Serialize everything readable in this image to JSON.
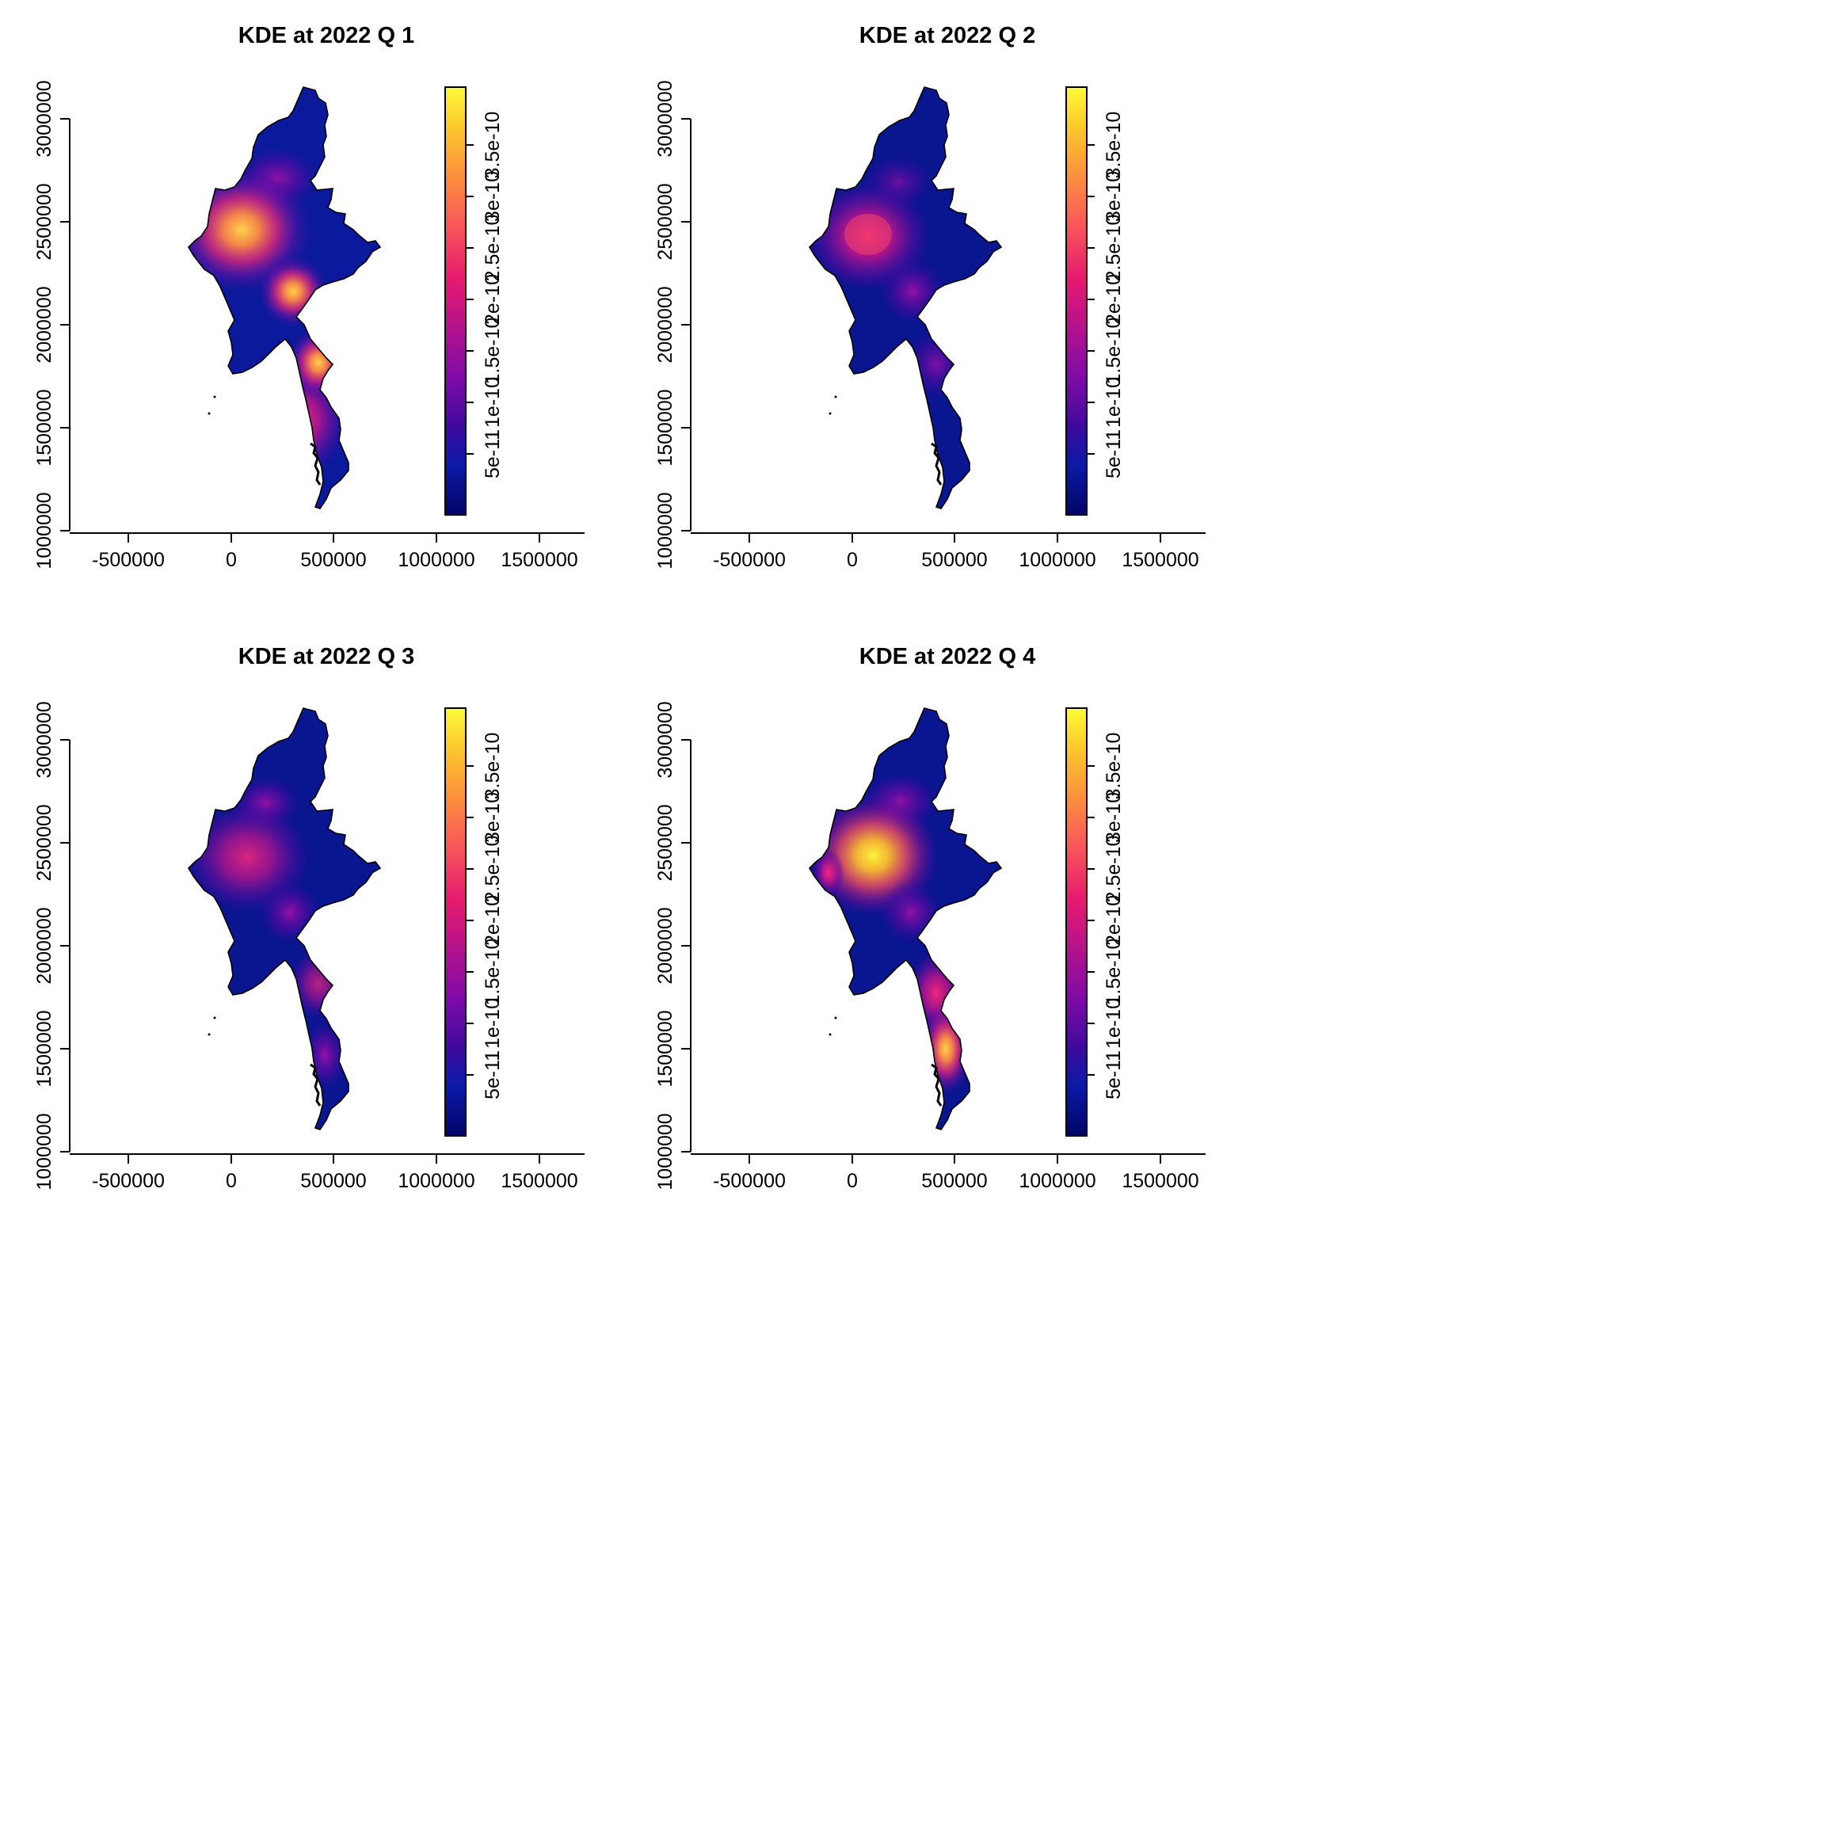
{
  "chart_data": [
    {
      "type": "heatmap",
      "title": "KDE at 2022 Q 1",
      "x_ticks": [
        "-500000",
        "0",
        "500000",
        "1000000",
        "1500000"
      ],
      "y_ticks": [
        "1000000",
        "1500000",
        "2000000",
        "2500000",
        "3000000"
      ],
      "colorbar_ticks": [
        "5e-11",
        "1e-10",
        "1.5e-10",
        "2e-10",
        "2.5e-10",
        "3e-10",
        "3.5e-10"
      ],
      "hotspots": [
        {
          "x": 60000,
          "y": 2450000,
          "value": 2.8e-10
        },
        {
          "x": 320000,
          "y": 2160000,
          "value": 2.3e-10
        },
        {
          "x": 420000,
          "y": 1800000,
          "value": 2.6e-10
        },
        {
          "x": 240000,
          "y": 2680000,
          "value": 1.1e-10
        },
        {
          "x": 380000,
          "y": 1550000,
          "value": 1.2e-10
        }
      ]
    },
    {
      "type": "heatmap",
      "title": "KDE at 2022 Q 2",
      "x_ticks": [
        "-500000",
        "0",
        "500000",
        "1000000",
        "1500000"
      ],
      "y_ticks": [
        "1000000",
        "1500000",
        "2000000",
        "2500000",
        "3000000"
      ],
      "colorbar_ticks": [
        "5e-11",
        "1e-10",
        "1.5e-10",
        "2e-10",
        "2.5e-10",
        "3e-10",
        "3.5e-10"
      ],
      "hotspots": [
        {
          "x": 80000,
          "y": 2430000,
          "value": 1.9e-10
        },
        {
          "x": 310000,
          "y": 2160000,
          "value": 1.2e-10
        },
        {
          "x": 400000,
          "y": 1800000,
          "value": 9e-11
        },
        {
          "x": 230000,
          "y": 2640000,
          "value": 7e-11
        }
      ]
    },
    {
      "type": "heatmap",
      "title": "KDE at 2022 Q 3",
      "x_ticks": [
        "-500000",
        "0",
        "500000",
        "1000000",
        "1500000"
      ],
      "y_ticks": [
        "1000000",
        "1500000",
        "2000000",
        "2500000",
        "3000000"
      ],
      "colorbar_ticks": [
        "5e-11",
        "1e-10",
        "1.5e-10",
        "2e-10",
        "2.5e-10",
        "3e-10",
        "3.5e-10"
      ],
      "hotspots": [
        {
          "x": 90000,
          "y": 2440000,
          "value": 1.6e-10
        },
        {
          "x": 310000,
          "y": 2150000,
          "value": 1.2e-10
        },
        {
          "x": 410000,
          "y": 1790000,
          "value": 1.1e-10
        },
        {
          "x": 220000,
          "y": 2680000,
          "value": 9e-11
        },
        {
          "x": 380000,
          "y": 1560000,
          "value": 1.1e-10
        }
      ]
    },
    {
      "type": "heatmap",
      "title": "KDE at 2022 Q 4",
      "x_ticks": [
        "-500000",
        "0",
        "500000",
        "1000000",
        "1500000"
      ],
      "y_ticks": [
        "1000000",
        "1500000",
        "2000000",
        "2500000",
        "3000000"
      ],
      "colorbar_ticks": [
        "5e-11",
        "1e-10",
        "1.5e-10",
        "2e-10",
        "2.5e-10",
        "3e-10",
        "3.5e-10"
      ],
      "hotspots": [
        {
          "x": 110000,
          "y": 2440000,
          "value": 3.3e-10
        },
        {
          "x": 320000,
          "y": 2150000,
          "value": 1e-10
        },
        {
          "x": 430000,
          "y": 1780000,
          "value": 1.8e-10
        },
        {
          "x": 410000,
          "y": 1500000,
          "value": 2e-10
        },
        {
          "x": 240000,
          "y": 2680000,
          "value": 1e-10
        },
        {
          "x": 500000,
          "y": 1320000,
          "value": 1.6e-10
        }
      ]
    }
  ],
  "colors": {
    "background_low": "#00007a",
    "palette": [
      "#0d0887",
      "#0c1aa8",
      "#4b03a1",
      "#8a0da8",
      "#c2167f",
      "#e5196f",
      "#f54f5e",
      "#fd8a3f",
      "#fec52c",
      "#f0f921"
    ]
  }
}
